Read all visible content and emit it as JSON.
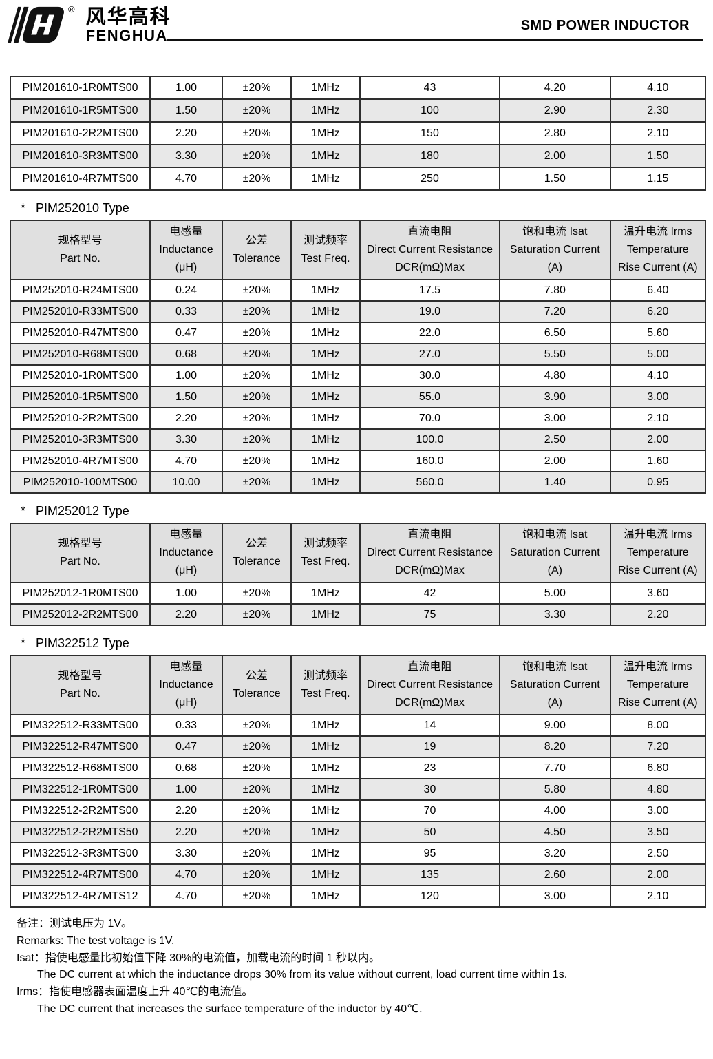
{
  "header": {
    "logo_cn": "风华高科",
    "logo_en": "FENGHUA",
    "registered": "®",
    "title": "SMD POWER INDUCTOR"
  },
  "table_header": {
    "part": [
      "规格型号",
      "Part No."
    ],
    "inductance": [
      "电感量",
      "Inductance",
      "(μH)"
    ],
    "tolerance": [
      "公差",
      "Tolerance"
    ],
    "freq": [
      "测试频率",
      "Test Freq."
    ],
    "dcr": [
      "直流电阻",
      "Direct Current Resistance",
      "DCR(mΩ)Max"
    ],
    "isat": [
      "饱和电流 Isat",
      "Saturation Current",
      "(A)"
    ],
    "irms": [
      "温升电流 Irms",
      "Temperature",
      "Rise Current (A)"
    ]
  },
  "tables": [
    {
      "heading": "",
      "rows": [
        [
          "PIM201610-1R0MTS00",
          "1.00",
          "±20%",
          "1MHz",
          "43",
          "4.20",
          "4.10"
        ],
        [
          "PIM201610-1R5MTS00",
          "1.50",
          "±20%",
          "1MHz",
          "100",
          "2.90",
          "2.30"
        ],
        [
          "PIM201610-2R2MTS00",
          "2.20",
          "±20%",
          "1MHz",
          "150",
          "2.80",
          "2.10"
        ],
        [
          "PIM201610-3R3MTS00",
          "3.30",
          "±20%",
          "1MHz",
          "180",
          "2.00",
          "1.50"
        ],
        [
          "PIM201610-4R7MTS00",
          "4.70",
          "±20%",
          "1MHz",
          "250",
          "1.50",
          "1.15"
        ]
      ]
    },
    {
      "marker": "*",
      "heading": "PIM252010 Type",
      "rows": [
        [
          "PIM252010-R24MTS00",
          "0.24",
          "±20%",
          "1MHz",
          "17.5",
          "7.80",
          "6.40"
        ],
        [
          "PIM252010-R33MTS00",
          "0.33",
          "±20%",
          "1MHz",
          "19.0",
          "7.20",
          "6.20"
        ],
        [
          "PIM252010-R47MTS00",
          "0.47",
          "±20%",
          "1MHz",
          "22.0",
          "6.50",
          "5.60"
        ],
        [
          "PIM252010-R68MTS00",
          "0.68",
          "±20%",
          "1MHz",
          "27.0",
          "5.50",
          "5.00"
        ],
        [
          "PIM252010-1R0MTS00",
          "1.00",
          "±20%",
          "1MHz",
          "30.0",
          "4.80",
          "4.10"
        ],
        [
          "PIM252010-1R5MTS00",
          "1.50",
          "±20%",
          "1MHz",
          "55.0",
          "3.90",
          "3.00"
        ],
        [
          "PIM252010-2R2MTS00",
          "2.20",
          "±20%",
          "1MHz",
          "70.0",
          "3.00",
          "2.10"
        ],
        [
          "PIM252010-3R3MTS00",
          "3.30",
          "±20%",
          "1MHz",
          "100.0",
          "2.50",
          "2.00"
        ],
        [
          "PIM252010-4R7MTS00",
          "4.70",
          "±20%",
          "1MHz",
          "160.0",
          "2.00",
          "1.60"
        ],
        [
          "PIM252010-100MTS00",
          "10.00",
          "±20%",
          "1MHz",
          "560.0",
          "1.40",
          "0.95"
        ]
      ]
    },
    {
      "marker": "*",
      "heading": "PIM252012 Type",
      "rows": [
        [
          "PIM252012-1R0MTS00",
          "1.00",
          "±20%",
          "1MHz",
          "42",
          "5.00",
          "3.60"
        ],
        [
          "PIM252012-2R2MTS00",
          "2.20",
          "±20%",
          "1MHz",
          "75",
          "3.30",
          "2.20"
        ]
      ]
    },
    {
      "marker": "*",
      "heading": "PIM322512 Type",
      "rows": [
        [
          "PIM322512-R33MTS00",
          "0.33",
          "±20%",
          "1MHz",
          "14",
          "9.00",
          "8.00"
        ],
        [
          "PIM322512-R47MTS00",
          "0.47",
          "±20%",
          "1MHz",
          "19",
          "8.20",
          "7.20"
        ],
        [
          "PIM322512-R68MTS00",
          "0.68",
          "±20%",
          "1MHz",
          "23",
          "7.70",
          "6.80"
        ],
        [
          "PIM322512-1R0MTS00",
          "1.00",
          "±20%",
          "1MHz",
          "30",
          "5.80",
          "4.80"
        ],
        [
          "PIM322512-2R2MTS00",
          "2.20",
          "±20%",
          "1MHz",
          "70",
          "4.00",
          "3.00"
        ],
        [
          "PIM322512-2R2MTS50",
          "2.20",
          "±20%",
          "1MHz",
          "50",
          "4.50",
          "3.50"
        ],
        [
          "PIM322512-3R3MTS00",
          "3.30",
          "±20%",
          "1MHz",
          "95",
          "3.20",
          "2.50"
        ],
        [
          "PIM322512-4R7MTS00",
          "4.70",
          "±20%",
          "1MHz",
          "135",
          "2.60",
          "2.00"
        ],
        [
          "PIM322512-4R7MTS12",
          "4.70",
          "±20%",
          "1MHz",
          "120",
          "3.00",
          "2.10"
        ]
      ]
    }
  ],
  "notes": [
    "备注：测试电压为 1V。",
    "Remarks: The test voltage is 1V.",
    "Isat：指使电感量比初始值下降 30%的电流值，加载电流的时间 1 秒以内。",
    "The DC current at which the inductance drops 30% from its value without current, load current time within 1s.",
    "Irms：指使电感器表面温度上升 40℃的电流值。",
    "The DC current that increases the surface temperature of the inductor by 40℃."
  ],
  "colors": {
    "row_shade": "#e8e8e8",
    "header_shade": "#e0e0e0",
    "border": "#2e2e2e",
    "text": "#000000"
  }
}
